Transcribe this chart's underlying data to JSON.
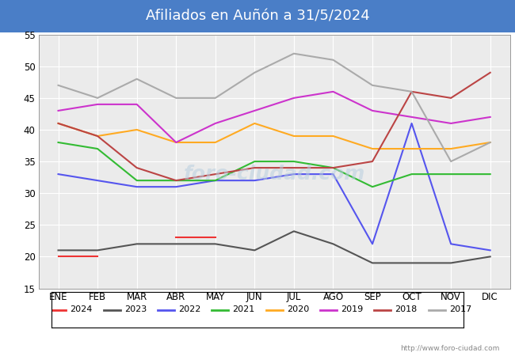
{
  "title": "Afiliados en Auñón a 31/5/2024",
  "title_bg": "#4A7EC7",
  "title_color": "white",
  "ylim": [
    15,
    55
  ],
  "yticks": [
    15,
    20,
    25,
    30,
    35,
    40,
    45,
    50,
    55
  ],
  "months": [
    "ENE",
    "FEB",
    "MAR",
    "ABR",
    "MAY",
    "JUN",
    "JUL",
    "AGO",
    "SEP",
    "OCT",
    "NOV",
    "DIC"
  ],
  "series": {
    "2024": {
      "color": "#EE3333",
      "values": [
        20,
        20,
        null,
        23,
        23,
        null,
        null,
        null,
        null,
        null,
        null,
        null
      ]
    },
    "2023": {
      "color": "#555555",
      "values": [
        21,
        21,
        22,
        22,
        22,
        21,
        24,
        22,
        19,
        19,
        19,
        20
      ]
    },
    "2022": {
      "color": "#5555EE",
      "values": [
        33,
        32,
        31,
        31,
        32,
        32,
        33,
        33,
        22,
        41,
        22,
        21
      ]
    },
    "2021": {
      "color": "#33BB33",
      "values": [
        38,
        37,
        32,
        32,
        32,
        35,
        35,
        34,
        31,
        33,
        33,
        33
      ]
    },
    "2020": {
      "color": "#FFAA22",
      "values": [
        41,
        39,
        40,
        38,
        38,
        41,
        39,
        39,
        37,
        37,
        37,
        38
      ]
    },
    "2019": {
      "color": "#CC33CC",
      "values": [
        43,
        44,
        44,
        38,
        41,
        43,
        45,
        46,
        43,
        42,
        41,
        42
      ]
    },
    "2018": {
      "color": "#BB4444",
      "values": [
        41,
        39,
        34,
        32,
        33,
        34,
        34,
        34,
        35,
        46,
        45,
        49
      ]
    },
    "2017": {
      "color": "#AAAAAA",
      "values": [
        47,
        45,
        48,
        45,
        45,
        49,
        52,
        51,
        47,
        46,
        35,
        38
      ]
    }
  },
  "url": "http://www.foro-ciudad.com",
  "legend_order": [
    "2024",
    "2023",
    "2022",
    "2021",
    "2020",
    "2019",
    "2018",
    "2017"
  ]
}
